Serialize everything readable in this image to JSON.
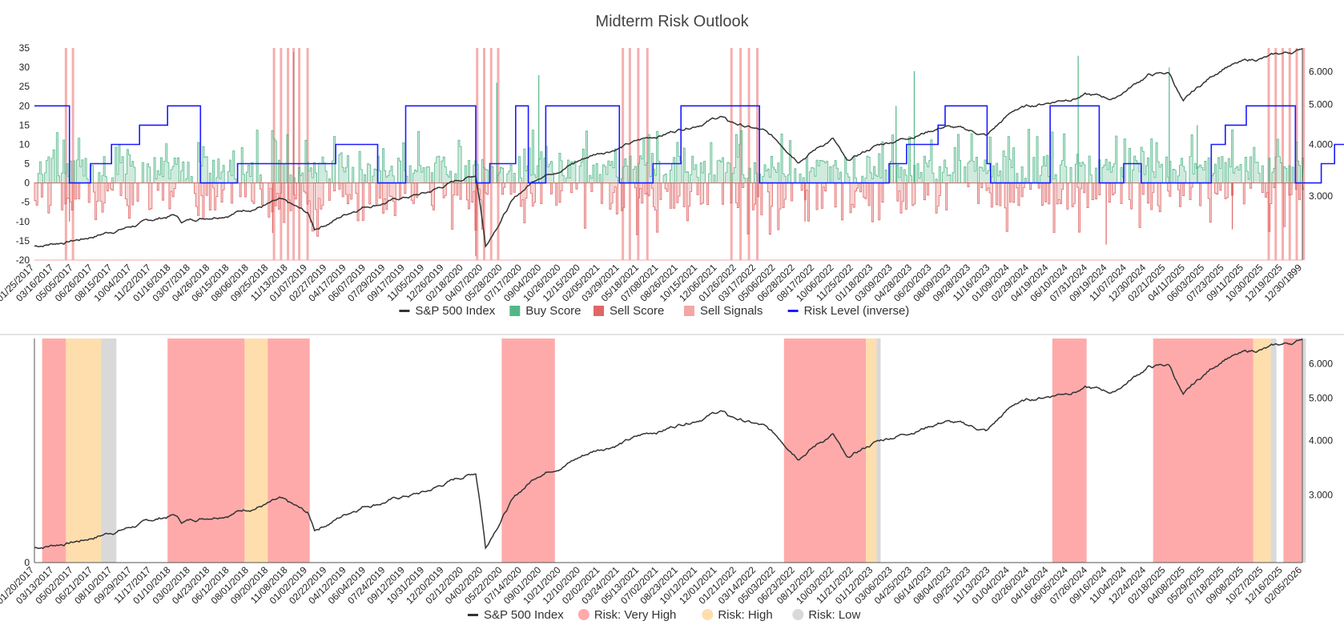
{
  "chart_data": [
    {
      "type": "line",
      "title": "Midterm Risk Outlook",
      "y_left": {
        "ticks": [
          35,
          30,
          25,
          20,
          15,
          10,
          5,
          0,
          -5,
          -10,
          -15,
          -20
        ],
        "range": [
          -20,
          35
        ]
      },
      "y_right": {
        "ticks": [
          "6.000",
          "5.000",
          "4.000",
          "3.000"
        ],
        "range": [
          2000,
          7000
        ],
        "scale": "log"
      },
      "x_tick_labels": [
        "01/25/2017",
        "03/16/2017",
        "05/05/2017",
        "06/26/2017",
        "08/15/2017",
        "10/04/2017",
        "11/22/2017",
        "01/16/2018",
        "03/07/2018",
        "04/26/2018",
        "06/15/2018",
        "08/06/2018",
        "09/25/2018",
        "11/13/2018",
        "01/07/2019",
        "02/27/2019",
        "04/17/2019",
        "06/07/2019",
        "07/29/2019",
        "09/17/2019",
        "11/05/2019",
        "12/26/2019",
        "02/18/2020",
        "04/07/2020",
        "05/28/2020",
        "07/17/2020",
        "09/04/2020",
        "10/26/2020",
        "12/15/2020",
        "02/05/2021",
        "03/29/2021",
        "05/18/2021",
        "07/08/2021",
        "08/26/2021",
        "10/15/2021",
        "12/06/2021",
        "01/26/2022",
        "03/17/2022",
        "05/06/2022",
        "06/28/2022",
        "08/17/2022",
        "10/06/2022",
        "11/25/2022",
        "01/18/2023",
        "03/09/2023",
        "04/28/2023",
        "06/20/2023",
        "08/09/2023",
        "09/28/2023",
        "11/16/2023",
        "01/09/2024",
        "02/29/2024",
        "04/19/2024",
        "06/10/2024",
        "07/31/2024",
        "09/19/2024",
        "11/07/2024",
        "12/30/2024",
        "02/21/2025",
        "04/11/2025",
        "06/03/2025",
        "07/23/2025",
        "09/11/2025",
        "10/30/2025",
        "12/19/2025",
        "12/30/1899"
      ],
      "legend": [
        {
          "label": "S&P 500 Index",
          "color": "#333333",
          "shape": "line"
        },
        {
          "label": "Buy Score",
          "color": "#52b788",
          "shape": "square"
        },
        {
          "label": "Sell Score",
          "color": "#e06666",
          "shape": "square"
        },
        {
          "label": "Sell Signals",
          "color": "#f4a6a6",
          "shape": "square"
        },
        {
          "label": "Risk Level (inverse)",
          "color": "#1a1aff",
          "shape": "line"
        }
      ],
      "series": [
        {
          "name": "Risk Level (inverse)",
          "x": [
            0,
            0.5,
            0.5,
            0.8,
            0.8,
            1.1,
            1.1,
            1.5,
            1.5,
            1.9,
            1.9,
            2.37,
            2.37,
            2.9,
            2.9,
            3.4,
            3.4,
            3.5,
            3.5,
            4.3,
            4.3,
            4.9,
            4.9,
            5.3,
            5.3,
            6.3,
            6.3,
            6.5,
            6.5,
            6.87,
            6.87,
            7.05,
            7.05,
            7.3,
            7.3,
            8.35,
            8.35,
            8.83,
            8.83,
            9.23,
            9.23,
            10.35,
            10.35,
            12.2,
            12.2,
            12.45,
            12.45,
            12.9,
            12.9,
            13.0,
            13.0,
            13.6,
            13.6,
            13.65,
            13.65,
            14.5,
            14.5,
            15.2,
            15.2,
            15.55,
            15.55,
            15.8,
            15.8,
            16.8,
            16.8,
            17.0,
            17.0,
            17.3,
            17.3,
            17.63,
            17.63,
            18.0,
            18.0,
            18.37,
            18.37,
            18.56,
            18.56,
            18.95,
            18.95,
            19.0,
            19.0,
            19.45
          ],
          "y": [
            20,
            20,
            0,
            0,
            5,
            5,
            10,
            10,
            15,
            15,
            20,
            20,
            0,
            0,
            5,
            5,
            5,
            5,
            5,
            5,
            10,
            10,
            0,
            0,
            20,
            20,
            0,
            0,
            5,
            5,
            20,
            20,
            0,
            0,
            20,
            20,
            0,
            0,
            5,
            5,
            20,
            20,
            0,
            0,
            5,
            5,
            10,
            10,
            15,
            15,
            20,
            20,
            5,
            5,
            0,
            0,
            20,
            20,
            0,
            0,
            5,
            5,
            0,
            0,
            10,
            10,
            15,
            15,
            20,
            20,
            20,
            20,
            0,
            0,
            5,
            5,
            10,
            10,
            15,
            15,
            15,
            15
          ]
        }
      ],
      "sell_signal_years": [
        0.45,
        0.55,
        3.42,
        3.52,
        3.62,
        3.7,
        3.78,
        3.9,
        6.32,
        6.42,
        6.52,
        6.62,
        8.4,
        8.5,
        8.62,
        8.75,
        9.95,
        10.08,
        10.2,
        10.32,
        17.62,
        17.72,
        17.82,
        17.92,
        18.02,
        18.12
      ]
    },
    {
      "type": "area",
      "y_left": {
        "ticks": [
          "0"
        ]
      },
      "y_right": {
        "ticks": [
          "6.000",
          "5.000",
          "4.000",
          "3.000"
        ],
        "range": [
          2000,
          7000
        ],
        "scale": "log"
      },
      "x_tick_labels": [
        "01/20/2017",
        "03/13/2017",
        "05/02/2017",
        "06/21/2017",
        "08/10/2017",
        "09/29/2017",
        "11/17/2017",
        "01/10/2018",
        "03/02/2018",
        "04/23/2018",
        "06/12/2018",
        "08/01/2018",
        "09/20/2018",
        "11/08/2018",
        "01/02/2019",
        "02/22/2019",
        "04/12/2019",
        "06/04/2019",
        "07/24/2019",
        "09/12/2019",
        "10/31/2019",
        "12/20/2019",
        "02/12/2020",
        "04/02/2020",
        "05/22/2020",
        "07/14/2020",
        "09/01/2020",
        "10/21/2020",
        "12/10/2020",
        "02/02/2021",
        "03/24/2021",
        "05/13/2021",
        "07/02/2021",
        "08/23/2021",
        "10/12/2021",
        "12/01/2021",
        "01/21/2022",
        "03/14/2022",
        "05/03/2022",
        "06/23/2022",
        "08/12/2022",
        "10/03/2022",
        "11/21/2022",
        "01/12/2023",
        "03/06/2023",
        "04/25/2023",
        "06/14/2023",
        "08/04/2023",
        "09/25/2023",
        "11/13/2023",
        "01/04/2024",
        "02/26/2024",
        "04/16/2024",
        "06/05/2024",
        "07/26/2024",
        "09/16/2024",
        "11/04/2024",
        "12/24/2024",
        "02/18/2025",
        "04/08/2025",
        "05/29/2025",
        "07/18/2025",
        "09/08/2025",
        "10/27/2025",
        "12/16/2025",
        "02/05/2026"
      ],
      "legend": [
        {
          "label": "S&P 500 Index",
          "color": "#333333",
          "shape": "line"
        },
        {
          "label": "Risk: Very High",
          "color": "#ffaaaa",
          "shape": "circle"
        },
        {
          "label": "Risk: High",
          "color": "#ffdead",
          "shape": "circle"
        },
        {
          "label": "Risk: Low",
          "color": "#d9d9d9",
          "shape": "circle"
        }
      ],
      "risk_bands": [
        {
          "start": 2017.16,
          "end": 2017.5,
          "level": "Very High"
        },
        {
          "start": 2017.5,
          "end": 2018.0,
          "level": "High"
        },
        {
          "start": 2018.0,
          "end": 2018.22,
          "level": "Low"
        },
        {
          "start": 2018.95,
          "end": 2020.05,
          "level": "Very High"
        },
        {
          "start": 2020.05,
          "end": 2020.38,
          "level": "High"
        },
        {
          "start": 2020.38,
          "end": 2020.98,
          "level": "Very High"
        },
        {
          "start": 2023.72,
          "end": 2024.48,
          "level": "Very High"
        },
        {
          "start": 2027.75,
          "end": 2028.92,
          "level": "Very High"
        },
        {
          "start": 2028.92,
          "end": 2029.07,
          "level": "High"
        },
        {
          "start": 2029.07,
          "end": 2029.13,
          "level": "Low"
        },
        {
          "start": 2031.58,
          "end": 2032.07,
          "level": "Very High"
        },
        {
          "start": 2033.02,
          "end": 2034.45,
          "level": "Very High"
        },
        {
          "start": 2034.45,
          "end": 2034.7,
          "level": "High"
        },
        {
          "start": 2034.7,
          "end": 2034.78,
          "level": "Low"
        },
        {
          "start": 2034.88,
          "end": 2035.15,
          "level": "Very High"
        },
        {
          "start": 2035.15,
          "end": 2035.2,
          "level": "Low"
        },
        {
          "start": 2036.08,
          "end": 2036.33,
          "level": "Very High"
        },
        {
          "start": 2036.33,
          "end": 2036.4,
          "level": "High"
        },
        {
          "start": 2036.4,
          "end": 2036.68,
          "level": "Low"
        }
      ]
    }
  ]
}
